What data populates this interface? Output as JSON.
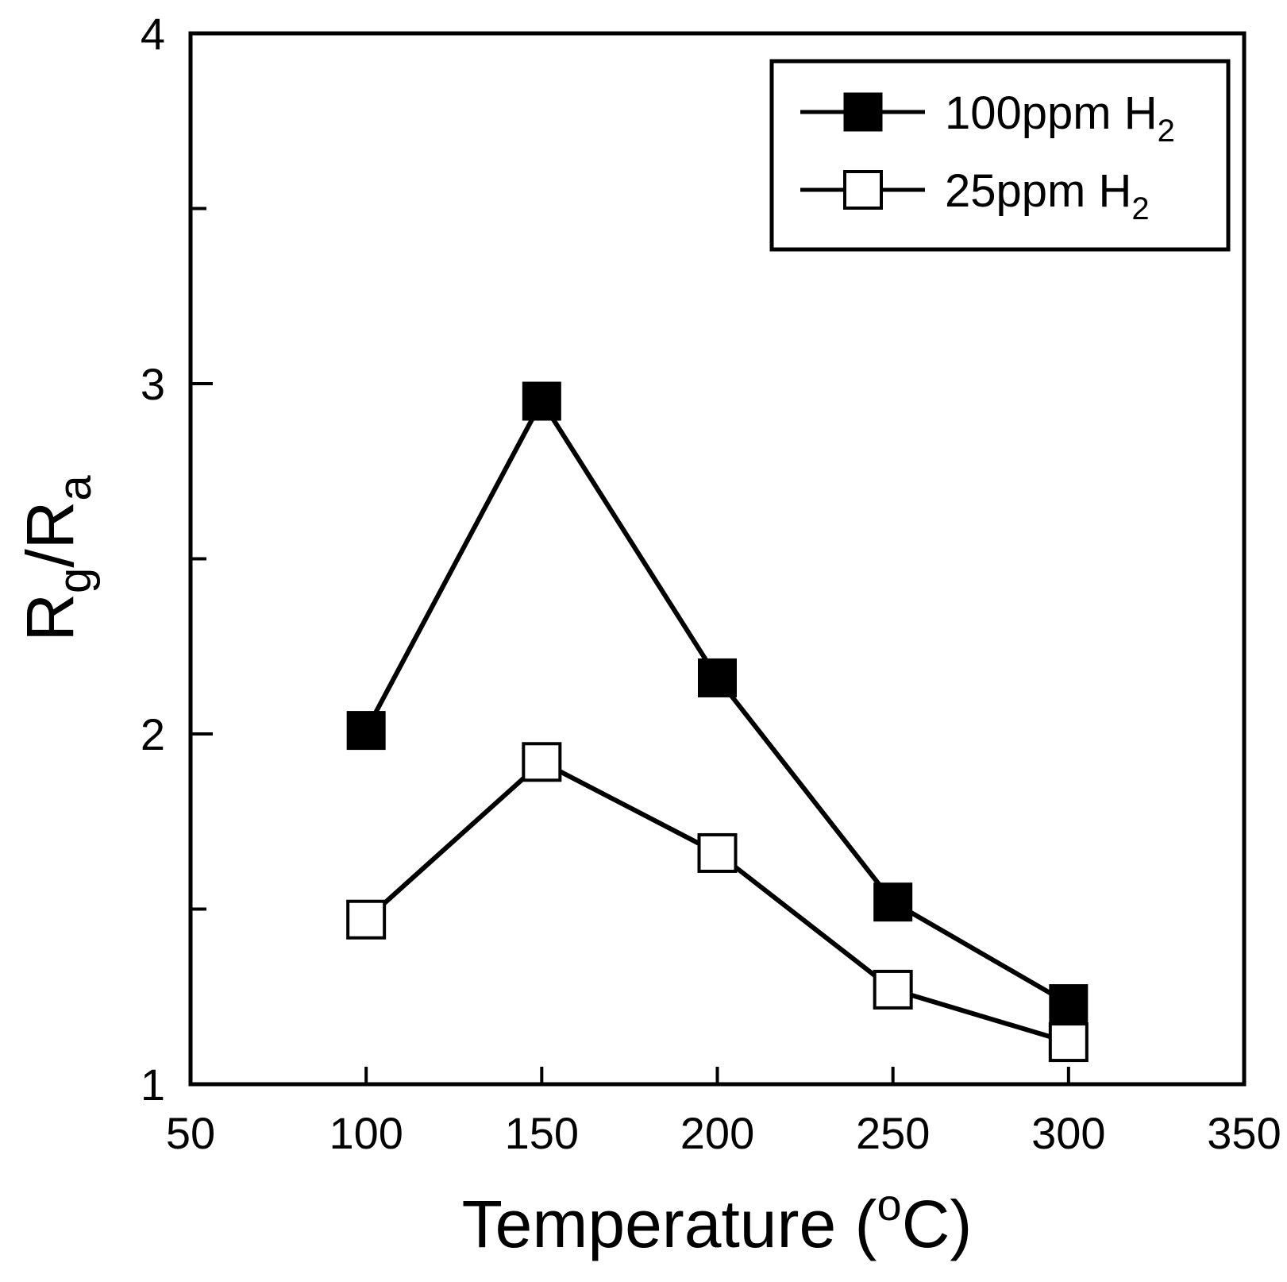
{
  "chart_data": {
    "type": "line",
    "title": "",
    "xlabel": "Temperature (oC)",
    "xlabel_parts": {
      "main": "Temperature (",
      "sup": "o",
      "end": "C)"
    },
    "ylabel": "Rg/Ra",
    "ylabel_parts": {
      "r1": "R",
      "sub1": "g",
      "slash": "/",
      "r2": "R",
      "sub2": "a"
    },
    "xlim": [
      50,
      350
    ],
    "ylim": [
      1,
      4
    ],
    "x_ticks": [
      50,
      100,
      150,
      200,
      250,
      300,
      350
    ],
    "x_tick_labels": [
      "50",
      "100",
      "150",
      "200",
      "250",
      "300",
      "350"
    ],
    "y_major_ticks": [
      1,
      2,
      3,
      4
    ],
    "y_tick_labels": [
      "1",
      "2",
      "3",
      "4"
    ],
    "y_minor_ticks": [
      1.5,
      2.5,
      3.5
    ],
    "grid": false,
    "legend_position": "top-right",
    "series": [
      {
        "name": "100ppm H2",
        "legend_main": "100ppm H",
        "legend_sub": "2",
        "marker": "filled-square",
        "x": [
          100,
          150,
          200,
          250,
          300
        ],
        "y": [
          2.01,
          2.95,
          2.16,
          1.52,
          1.23
        ]
      },
      {
        "name": "25ppm H2",
        "legend_main": "25ppm H",
        "legend_sub": "2",
        "marker": "open-square",
        "x": [
          100,
          150,
          200,
          250,
          300
        ],
        "y": [
          1.47,
          1.92,
          1.66,
          1.27,
          1.12
        ]
      }
    ]
  }
}
